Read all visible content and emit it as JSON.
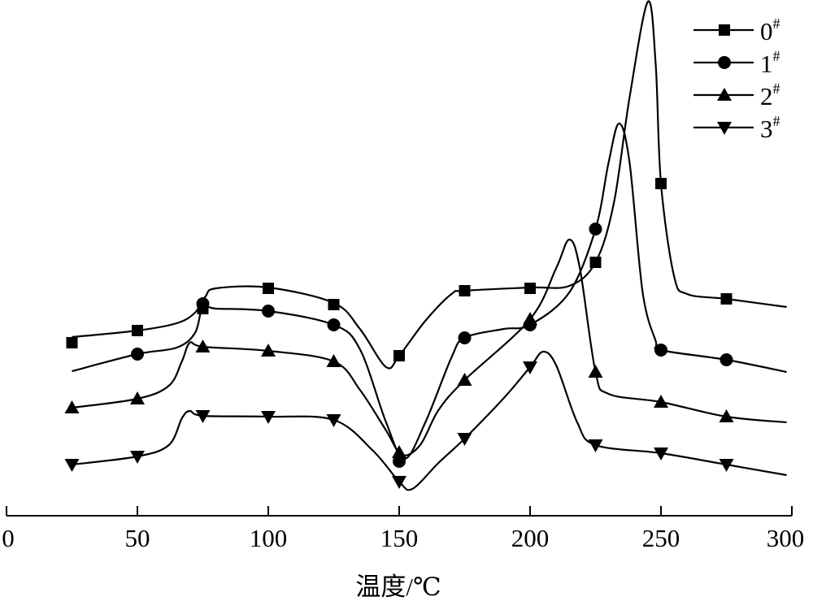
{
  "chart_data": {
    "type": "line",
    "title": "",
    "xlabel": "温度/℃",
    "ylabel": "",
    "xlim": [
      0,
      300
    ],
    "ylim": [
      0,
      63.5
    ],
    "y_units": "arbitrary (heat flow, no axis shown)",
    "xticks": [
      "0",
      "50",
      "100",
      "150",
      "200",
      "250",
      "300"
    ],
    "xtick_values": [
      0,
      50,
      100,
      150,
      200,
      250,
      300
    ],
    "grid": false,
    "legend_position": "top-right",
    "marker_x": [
      25,
      50,
      75,
      100,
      125,
      150,
      175,
      200,
      225,
      250,
      275
    ],
    "series": [
      {
        "name": "0",
        "sup": "#",
        "marker": "square",
        "markers": [
          21.3,
          22.8,
          25.5,
          28.0,
          26.0,
          19.7,
          27.7,
          28.0,
          31.2,
          40.9,
          26.7
        ],
        "curve": [
          [
            25,
            22
          ],
          [
            50,
            22.8
          ],
          [
            65,
            23.7
          ],
          [
            72,
            25
          ],
          [
            76,
            27
          ],
          [
            80,
            28
          ],
          [
            100,
            28.1
          ],
          [
            125,
            26.2
          ],
          [
            135,
            23
          ],
          [
            145,
            18.3
          ],
          [
            150,
            19.7
          ],
          [
            160,
            24
          ],
          [
            170,
            27.3
          ],
          [
            175,
            27.7
          ],
          [
            200,
            28.1
          ],
          [
            215,
            28.3
          ],
          [
            225,
            31.2
          ],
          [
            232,
            38.5
          ],
          [
            238,
            51.5
          ],
          [
            245,
            63.3
          ],
          [
            248,
            55.5
          ],
          [
            250,
            40.9
          ],
          [
            255,
            29.5
          ],
          [
            260,
            27.3
          ],
          [
            275,
            26.7
          ],
          [
            298,
            25.7
          ]
        ]
      },
      {
        "name": "1",
        "sup": "#",
        "marker": "circle",
        "markers": [
          null,
          19.9,
          26.1,
          25.2,
          23.5,
          6.7,
          21.9,
          23.5,
          35.3,
          20.4,
          19.2
        ],
        "curve": [
          [
            25,
            17.8
          ],
          [
            50,
            19.9
          ],
          [
            65,
            20.7
          ],
          [
            72,
            22.5
          ],
          [
            75,
            25.7
          ],
          [
            80,
            25.5
          ],
          [
            100,
            25.2
          ],
          [
            125,
            23.5
          ],
          [
            135,
            20.5
          ],
          [
            145,
            11.5
          ],
          [
            152,
            7
          ],
          [
            160,
            11.5
          ],
          [
            170,
            19.5
          ],
          [
            175,
            21.9
          ],
          [
            190,
            23
          ],
          [
            200,
            23.5
          ],
          [
            215,
            27.5
          ],
          [
            225,
            35.3
          ],
          [
            230,
            43.5
          ],
          [
            234,
            48.3
          ],
          [
            238,
            43.5
          ],
          [
            243,
            27.5
          ],
          [
            248,
            21.5
          ],
          [
            250,
            20.4
          ],
          [
            275,
            19.2
          ],
          [
            298,
            17.7
          ]
        ]
      },
      {
        "name": "2",
        "sup": "#",
        "marker": "triangle-up",
        "markers": [
          13.3,
          14.4,
          20.8,
          20.3,
          19.0,
          7.8,
          16.7,
          24.2,
          17.7,
          14.0,
          12.2
        ],
        "curve": [
          [
            25,
            13.3
          ],
          [
            50,
            14.4
          ],
          [
            62,
            16
          ],
          [
            67,
            19
          ],
          [
            70,
            21.3
          ],
          [
            75,
            20.8
          ],
          [
            100,
            20.3
          ],
          [
            125,
            19
          ],
          [
            135,
            15.5
          ],
          [
            145,
            10.5
          ],
          [
            151,
            7.5
          ],
          [
            158,
            8.7
          ],
          [
            165,
            13
          ],
          [
            175,
            16.7
          ],
          [
            200,
            24.2
          ],
          [
            210,
            30.5
          ],
          [
            215,
            34
          ],
          [
            219,
            30.5
          ],
          [
            225,
            17.7
          ],
          [
            230,
            15
          ],
          [
            250,
            14
          ],
          [
            275,
            12.2
          ],
          [
            298,
            11.5
          ]
        ]
      },
      {
        "name": "3",
        "sup": "#",
        "marker": "triangle-down",
        "markers": [
          6.3,
          7.3,
          12.3,
          12.2,
          11.8,
          4.2,
          9.5,
          18.3,
          8.7,
          7.7,
          6.3
        ],
        "curve": [
          [
            25,
            6.3
          ],
          [
            50,
            7.3
          ],
          [
            62,
            8.7
          ],
          [
            67,
            12
          ],
          [
            70,
            12.9
          ],
          [
            75,
            12.3
          ],
          [
            100,
            12.2
          ],
          [
            125,
            11.8
          ],
          [
            140,
            8
          ],
          [
            150,
            4.2
          ],
          [
            155,
            3.3
          ],
          [
            165,
            6.5
          ],
          [
            175,
            9.5
          ],
          [
            190,
            14.5
          ],
          [
            200,
            18.3
          ],
          [
            205,
            20.2
          ],
          [
            210,
            18.5
          ],
          [
            218,
            11.5
          ],
          [
            225,
            8.7
          ],
          [
            250,
            7.7
          ],
          [
            275,
            6.3
          ],
          [
            298,
            5
          ]
        ]
      }
    ]
  }
}
